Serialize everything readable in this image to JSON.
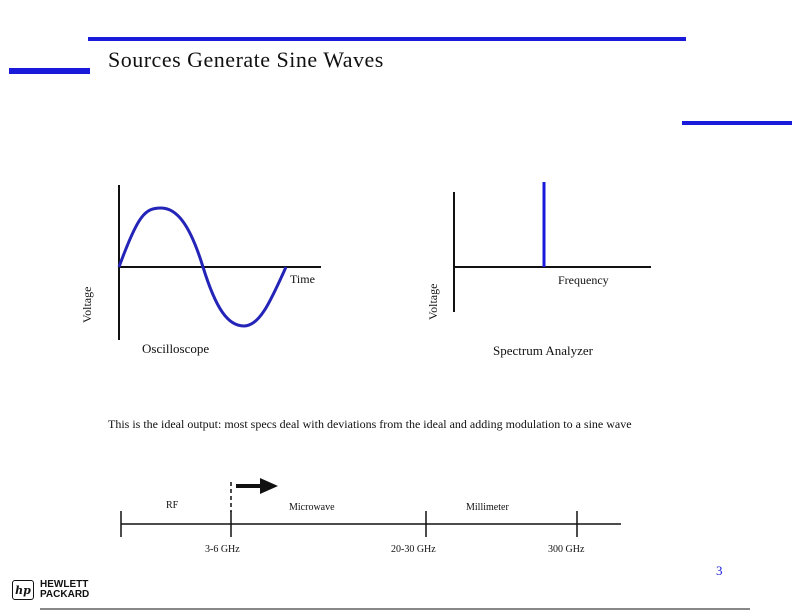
{
  "slide": {
    "title": "Sources Generate Sine Waves",
    "page_number": "3",
    "accent_color": "#1a1adb"
  },
  "oscilloscope": {
    "y_label": "Voltage",
    "x_label": "Time",
    "caption": "Oscilloscope"
  },
  "spectrum": {
    "y_label": "Voltage",
    "x_label": "Frequency",
    "caption": "Spectrum Analyzer"
  },
  "description": "This is the ideal output: most specs deal with deviations from the ideal and adding modulation to a sine wave",
  "frequency_scale": {
    "bands": [
      "RF",
      "Microwave",
      "Millimeter"
    ],
    "ticks": [
      "3-6 GHz",
      "20-30 GHz",
      "300 GHz"
    ]
  },
  "footer": {
    "logo_mark": "hp",
    "logo_line1": "HEWLETT",
    "logo_line2": "PACKARD",
    "logo_icon": "hp-logo-icon"
  }
}
